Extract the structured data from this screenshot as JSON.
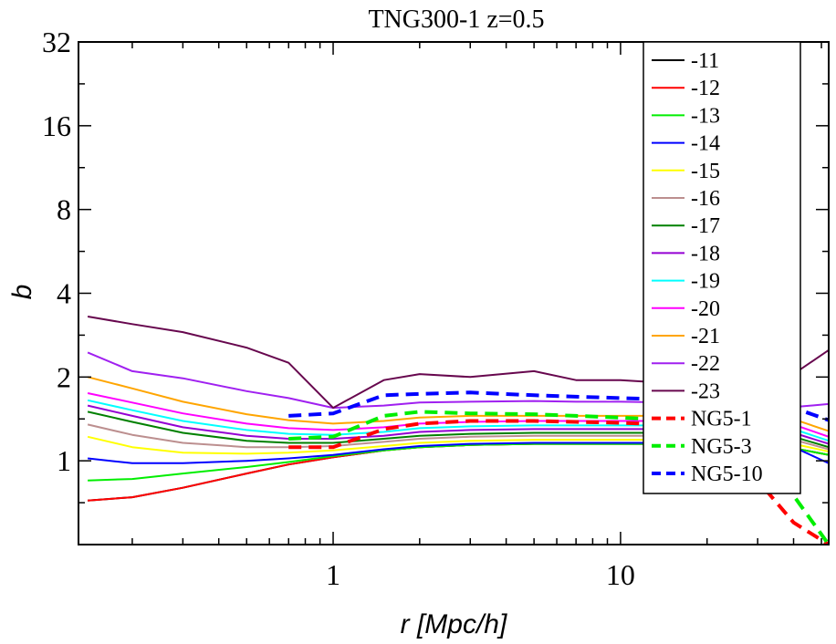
{
  "chart_data": {
    "type": "line",
    "title": "TNG300-1 z=0.5",
    "xlabel": "r [Mpc/h]",
    "ylabel": "b",
    "xscale": "log",
    "yscale": "log2",
    "xlim": [
      0.13,
      53
    ],
    "ylim": [
      0.5,
      32
    ],
    "xticks": [
      {
        "value": 1,
        "label": "1"
      },
      {
        "value": 10,
        "label": "10"
      }
    ],
    "yticks": [
      {
        "value": 1,
        "label": "1"
      },
      {
        "value": 2,
        "label": "2"
      },
      {
        "value": 4,
        "label": "4"
      },
      {
        "value": 8,
        "label": "8"
      },
      {
        "value": 16,
        "label": "16"
      },
      {
        "value": 32,
        "label": "32"
      }
    ],
    "legend_position": "top-right",
    "x": [
      0.14,
      0.2,
      0.3,
      0.5,
      0.7,
      1.0,
      1.5,
      2,
      3,
      5,
      7,
      10,
      15,
      20,
      30,
      40,
      53
    ],
    "series": [
      {
        "name": "-11",
        "color": "#000000",
        "dash": false,
        "values": [
          0.72,
          0.74,
          0.8,
          0.9,
          0.97,
          1.03,
          1.09,
          1.12,
          1.14,
          1.15,
          1.15,
          1.15,
          1.15,
          1.14,
          1.13,
          1.11,
          1.05
        ]
      },
      {
        "name": "-12",
        "color": "#ff0000",
        "dash": false,
        "values": [
          0.72,
          0.74,
          0.8,
          0.9,
          0.97,
          1.03,
          1.09,
          1.12,
          1.14,
          1.15,
          1.15,
          1.15,
          1.15,
          1.14,
          1.13,
          1.11,
          1.05
        ]
      },
      {
        "name": "-13",
        "color": "#00ee00",
        "dash": false,
        "values": [
          0.85,
          0.86,
          0.9,
          0.95,
          0.99,
          1.04,
          1.09,
          1.12,
          1.14,
          1.15,
          1.15,
          1.15,
          1.15,
          1.14,
          1.13,
          1.11,
          1.05
        ]
      },
      {
        "name": "-14",
        "color": "#0000ff",
        "dash": false,
        "values": [
          1.02,
          0.98,
          0.98,
          1.0,
          1.02,
          1.05,
          1.1,
          1.13,
          1.15,
          1.16,
          1.16,
          1.16,
          1.16,
          1.15,
          1.14,
          1.12,
          0.98
        ]
      },
      {
        "name": "-15",
        "color": "#ffff00",
        "dash": false,
        "values": [
          1.22,
          1.12,
          1.07,
          1.06,
          1.07,
          1.09,
          1.13,
          1.16,
          1.18,
          1.19,
          1.19,
          1.19,
          1.19,
          1.18,
          1.17,
          1.15,
          1.08
        ]
      },
      {
        "name": "-16",
        "color": "#bc8f8f",
        "dash": false,
        "values": [
          1.35,
          1.24,
          1.16,
          1.12,
          1.12,
          1.13,
          1.17,
          1.2,
          1.22,
          1.23,
          1.23,
          1.23,
          1.23,
          1.22,
          1.21,
          1.19,
          1.1
        ]
      },
      {
        "name": "-17",
        "color": "#008000",
        "dash": false,
        "values": [
          1.5,
          1.38,
          1.26,
          1.18,
          1.16,
          1.16,
          1.2,
          1.23,
          1.25,
          1.26,
          1.26,
          1.26,
          1.26,
          1.25,
          1.24,
          1.22,
          1.12
        ]
      },
      {
        "name": "-18",
        "color": "#9400d3",
        "dash": false,
        "values": [
          1.58,
          1.45,
          1.32,
          1.23,
          1.2,
          1.2,
          1.23,
          1.27,
          1.29,
          1.3,
          1.3,
          1.3,
          1.3,
          1.29,
          1.28,
          1.26,
          1.15
        ]
      },
      {
        "name": "-19",
        "color": "#00ffff",
        "dash": false,
        "values": [
          1.65,
          1.52,
          1.39,
          1.29,
          1.25,
          1.24,
          1.27,
          1.31,
          1.33,
          1.34,
          1.34,
          1.34,
          1.34,
          1.33,
          1.32,
          1.3,
          1.18
        ]
      },
      {
        "name": "-20",
        "color": "#ff00ff",
        "dash": false,
        "values": [
          1.75,
          1.62,
          1.48,
          1.36,
          1.31,
          1.29,
          1.32,
          1.36,
          1.38,
          1.39,
          1.39,
          1.39,
          1.39,
          1.38,
          1.37,
          1.35,
          1.22
        ]
      },
      {
        "name": "-21",
        "color": "#ffa500",
        "dash": false,
        "values": [
          2.0,
          1.82,
          1.63,
          1.47,
          1.4,
          1.36,
          1.39,
          1.43,
          1.45,
          1.45,
          1.45,
          1.45,
          1.45,
          1.44,
          1.43,
          1.41,
          1.28
        ]
      },
      {
        "name": "-22",
        "color": "#a020f0",
        "dash": false,
        "values": [
          2.45,
          2.1,
          1.98,
          1.78,
          1.68,
          1.55,
          1.58,
          1.62,
          1.63,
          1.64,
          1.63,
          1.63,
          1.62,
          1.6,
          1.58,
          1.56,
          1.6
        ]
      },
      {
        "name": "-23",
        "color": "#67074e",
        "dash": false,
        "values": [
          3.3,
          3.1,
          2.9,
          2.55,
          2.25,
          1.55,
          1.95,
          2.05,
          2.0,
          2.1,
          1.95,
          1.95,
          1.9,
          2.0,
          2.1,
          2.05,
          2.5
        ]
      },
      {
        "name": "NG5-1",
        "color": "#ff0000",
        "dash": true,
        "values": [
          null,
          null,
          null,
          null,
          1.12,
          1.12,
          1.3,
          1.36,
          1.39,
          1.39,
          1.38,
          1.37,
          1.35,
          1.2,
          0.85,
          0.6,
          0.5
        ]
      },
      {
        "name": "NG5-3",
        "color": "#00ee00",
        "dash": true,
        "values": [
          null,
          null,
          null,
          null,
          1.2,
          1.22,
          1.45,
          1.5,
          1.48,
          1.47,
          1.45,
          1.43,
          1.4,
          1.35,
          1.1,
          0.75,
          0.5
        ]
      },
      {
        "name": "NG5-10",
        "color": "#0000ff",
        "dash": true,
        "values": [
          null,
          null,
          null,
          null,
          1.45,
          1.48,
          1.72,
          1.74,
          1.76,
          1.72,
          1.7,
          1.68,
          1.66,
          1.63,
          1.6,
          1.55,
          1.4
        ]
      }
    ]
  }
}
